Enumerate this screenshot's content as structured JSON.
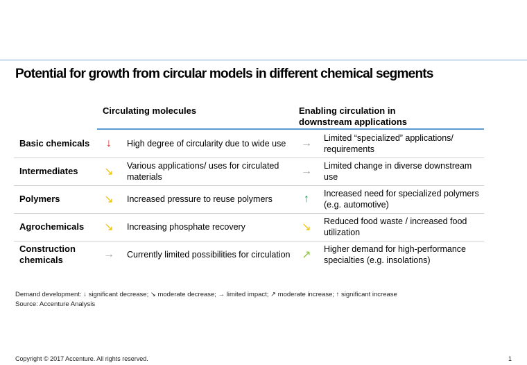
{
  "title": "Potential for growth from circular models in different chemical segments",
  "columns": [
    "Circulating molecules",
    "Enabling circulation in downstream applications"
  ],
  "colors": {
    "significant-decrease": "#d7191c",
    "moderate-decrease": "#f2c200",
    "limited-impact": "#a6a6a6",
    "moderate-increase": "#8cc63f",
    "significant-increase": "#1a9850",
    "accent": "#5b9bd5"
  },
  "rows": [
    {
      "segment": "Basic chemicals",
      "c1_arrow": "↓",
      "c1_icon": "arrow-down-icon",
      "c1_color": "#d7191c",
      "c1_text": "High degree of circularity due to wide use",
      "c2_arrow": "→",
      "c2_icon": "arrow-right-icon",
      "c2_color": "#a6a6a6",
      "c2_text": "Limited “specialized” applications/ requirements"
    },
    {
      "segment": "Intermediates",
      "c1_arrow": "↘",
      "c1_icon": "arrow-down-right-icon",
      "c1_color": "#f2c200",
      "c1_text": "Various applications/ uses for circulated materials",
      "c2_arrow": "→",
      "c2_icon": "arrow-right-icon",
      "c2_color": "#a6a6a6",
      "c2_text": "Limited change in diverse downstream use"
    },
    {
      "segment": "Polymers",
      "c1_arrow": "↘",
      "c1_icon": "arrow-down-right-icon",
      "c1_color": "#f2c200",
      "c1_text": "Increased pressure to reuse polymers",
      "c2_arrow": "↑",
      "c2_icon": "arrow-up-icon",
      "c2_color": "#1a9850",
      "c2_text": "Increased need for specialized polymers (e.g. automotive)"
    },
    {
      "segment": "Agrochemicals",
      "c1_arrow": "↘",
      "c1_icon": "arrow-down-right-icon",
      "c1_color": "#f2c200",
      "c1_text": "Increasing phosphate recovery",
      "c2_arrow": "↘",
      "c2_icon": "arrow-down-right-icon",
      "c2_color": "#f2c200",
      "c2_text": "Reduced food waste / increased food utilization"
    },
    {
      "segment": "Construction chemicals",
      "c1_arrow": "→",
      "c1_icon": "arrow-right-icon",
      "c1_color": "#a6a6a6",
      "c1_text": "Currently limited possibilities for circulation",
      "c2_arrow": "↗",
      "c2_icon": "arrow-up-right-icon",
      "c2_color": "#8cc63f",
      "c2_text": "Higher demand for high-performance specialties (e.g. insolations)"
    }
  ],
  "legend": "Demand development:  ↓ significant decrease; ↘ moderate decrease; → limited impact; ↗ moderate increase; ↑ significant increase",
  "source": "Source: Accenture Analysis",
  "copyright": "Copyright © 2017  Accenture. All rights reserved.",
  "page_number": "1"
}
